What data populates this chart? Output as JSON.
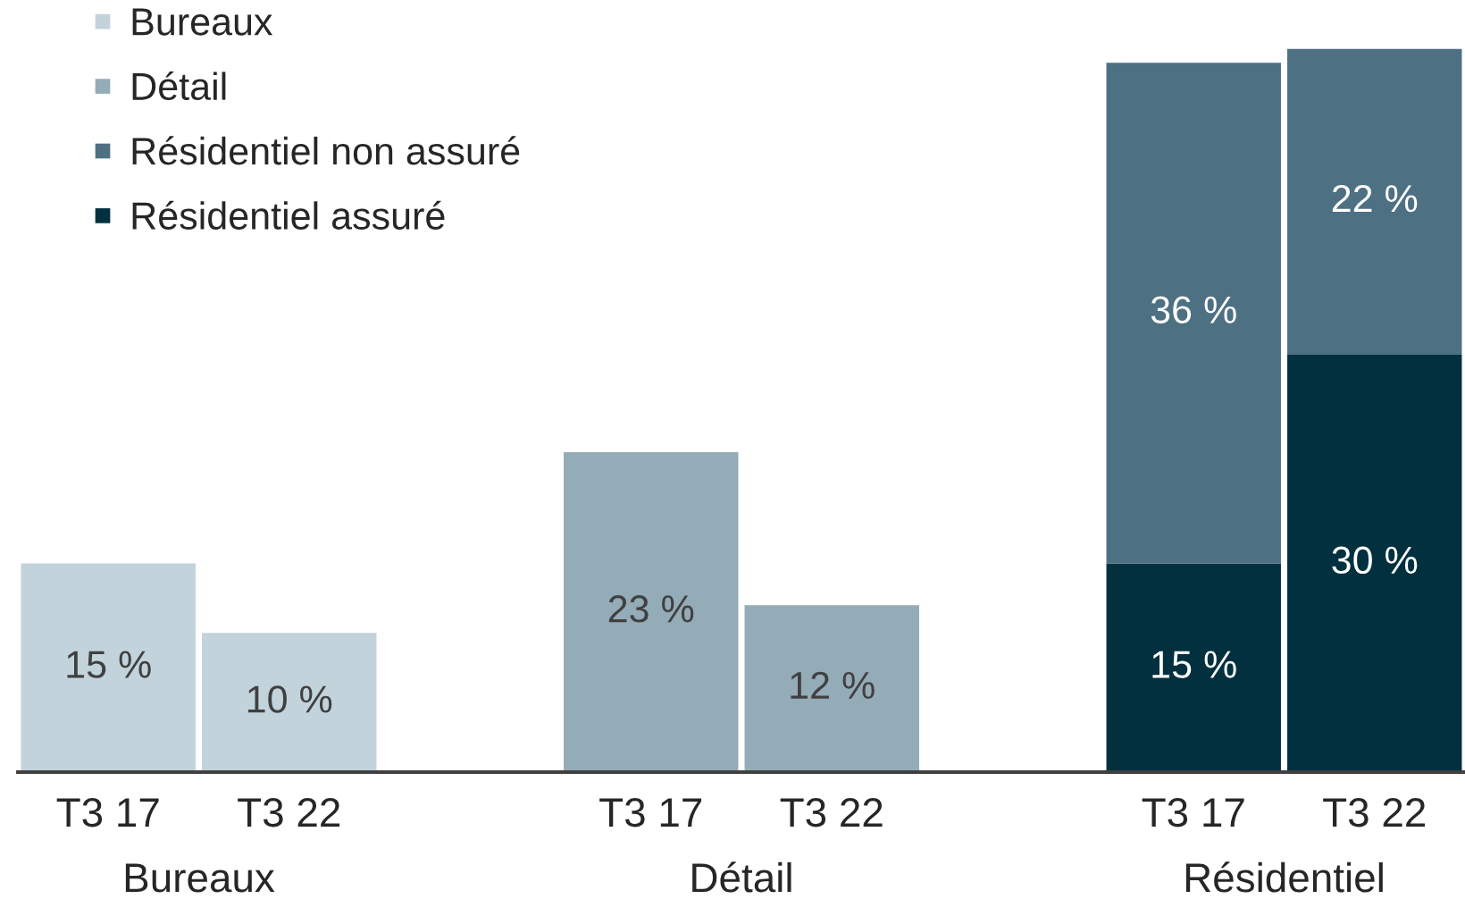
{
  "chart_data": {
    "type": "bar",
    "stacked": true,
    "categories": [
      "T3 17",
      "T3 22",
      null,
      "T3 17",
      "T3 22",
      null,
      "T3 17",
      "T3 22"
    ],
    "series": [
      {
        "name": "Résidentiel assuré",
        "color": "#03303f",
        "values": [
          null,
          null,
          null,
          null,
          null,
          null,
          15,
          30
        ],
        "value_labels": [
          null,
          null,
          null,
          null,
          null,
          null,
          "15 %",
          "30 %"
        ]
      },
      {
        "name": "Résidentiel non assuré",
        "color": "#4e7083",
        "values": [
          null,
          null,
          null,
          null,
          null,
          null,
          36,
          22
        ],
        "value_labels": [
          null,
          null,
          null,
          null,
          null,
          null,
          "36 %",
          "22 %"
        ]
      },
      {
        "name": "Détail",
        "color": "#94abb8",
        "values": [
          null,
          null,
          null,
          23,
          12,
          null,
          null,
          null
        ],
        "value_labels": [
          null,
          null,
          null,
          "23 %",
          "12 %",
          null,
          null,
          null
        ]
      },
      {
        "name": "Bureaux",
        "color": "#c2d3db",
        "values": [
          15,
          10,
          null,
          null,
          null,
          null,
          null,
          null
        ],
        "value_labels": [
          "15 %",
          "10 %",
          null,
          null,
          null,
          null,
          null,
          null
        ]
      }
    ],
    "ylim": [
      0,
      55
    ],
    "tick_labels": "x",
    "legend": "top left",
    "annotations": [
      "Bureaux",
      "Détail",
      "Résidentiel"
    ]
  }
}
